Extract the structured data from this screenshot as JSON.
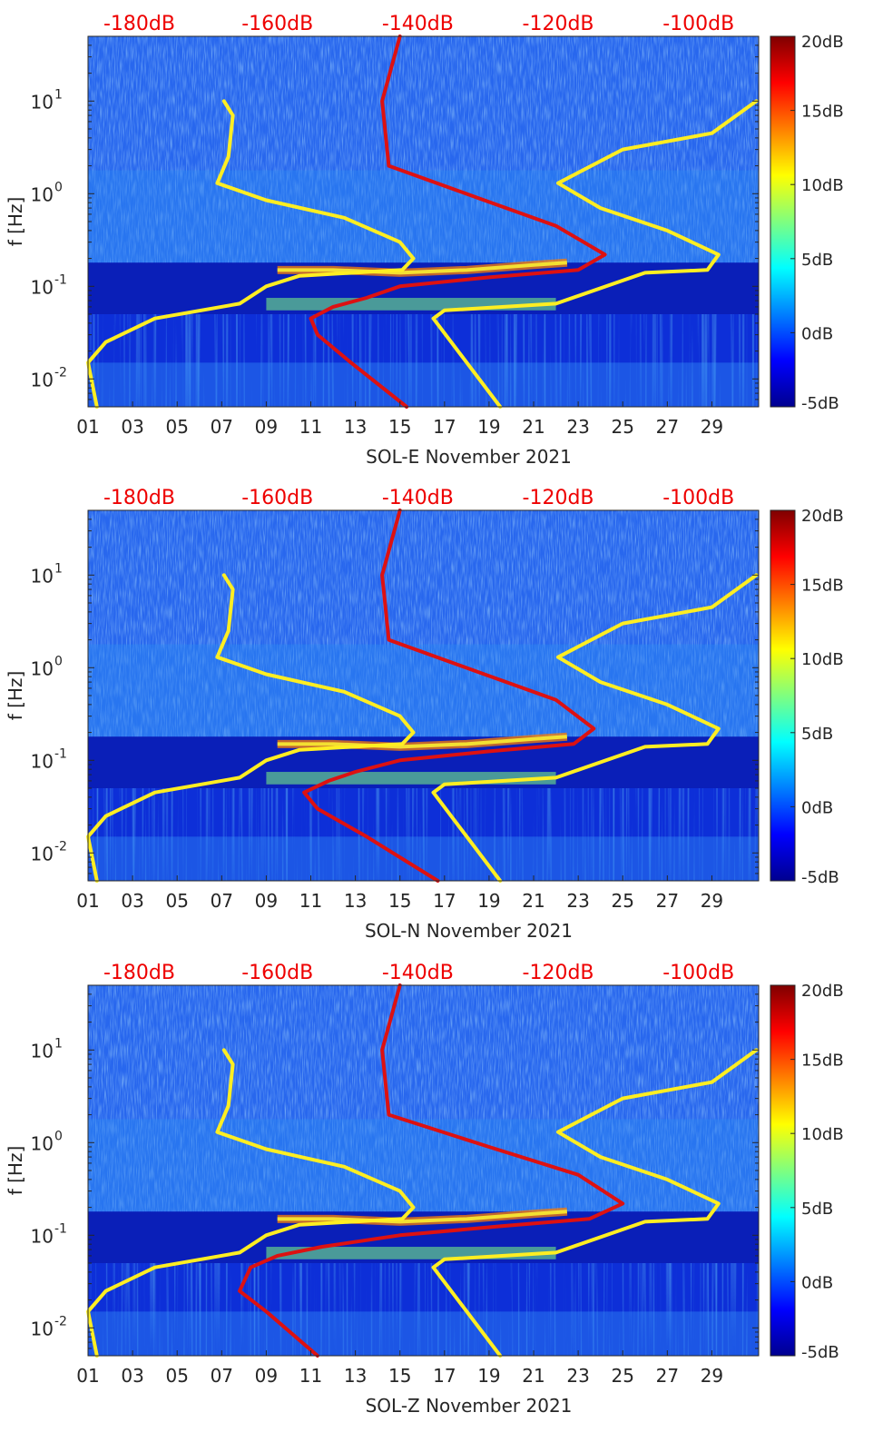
{
  "colormap": {
    "stops": [
      "#00008f",
      "#0000ff",
      "#007fff",
      "#00ffff",
      "#7fff7f",
      "#ffff00",
      "#ff7f00",
      "#ff0000",
      "#7f0000"
    ],
    "yellow_line": "#ffee22",
    "red_line": "#dd1111",
    "db_label_color": "#ee0000"
  },
  "chart_data": [
    {
      "type": "heatmap",
      "title": "",
      "xlabel": "SOL-E November 2021",
      "ylabel": "f [Hz]",
      "x_ticks": [
        "01",
        "03",
        "05",
        "07",
        "09",
        "11",
        "13",
        "15",
        "17",
        "19",
        "21",
        "23",
        "25",
        "27",
        "29"
      ],
      "y_ticks": [
        "10",
        "10",
        "10",
        "10"
      ],
      "y_tick_exponents": [
        "-2",
        "-1",
        "0",
        "1"
      ],
      "y_tick_values": [
        0.01,
        0.1,
        1,
        10
      ],
      "ylim": [
        0.005,
        50
      ],
      "xlim": [
        1,
        31.1
      ],
      "top_labels": [
        "-180dB",
        "-160dB",
        "-140dB",
        "-120dB",
        "-100dB"
      ],
      "top_label_days": [
        3.3,
        9.5,
        15.8,
        22.1,
        28.4
      ],
      "colorbar": {
        "labels": [
          "20dB",
          "15dB",
          "10dB",
          "5dB",
          "0dB",
          "-5dB"
        ],
        "range": [
          -5,
          20
        ]
      },
      "series": [
        {
          "name": "yellow-low",
          "x": [
            7.1,
            7.5,
            7.3,
            6.8,
            9.0,
            12.5,
            15.0,
            15.6,
            15.1,
            10.5,
            9.0,
            7.8,
            4.0,
            1.8,
            1.0,
            1.4
          ],
          "y": [
            10,
            7,
            2.5,
            1.3,
            0.85,
            0.55,
            0.3,
            0.2,
            0.15,
            0.13,
            0.1,
            0.065,
            0.045,
            0.025,
            0.015,
            0.005
          ]
        },
        {
          "name": "yellow-high",
          "x": [
            31.0,
            29.0,
            25.0,
            22.1,
            24.0,
            27.0,
            29.3,
            28.8,
            26.0,
            22.0,
            17.0,
            16.5,
            19.5
          ],
          "y": [
            10,
            4.5,
            3.0,
            1.3,
            0.7,
            0.4,
            0.22,
            0.15,
            0.14,
            0.065,
            0.055,
            0.045,
            0.005
          ]
        },
        {
          "name": "red-nlnm",
          "x": [
            15.0,
            14.2,
            14.5,
            18.5,
            22.0,
            24.2,
            23.0,
            19.0,
            15.0,
            13.5,
            12.0,
            11.0,
            11.3,
            12.8,
            15.3
          ],
          "y": [
            50,
            10,
            2.0,
            0.9,
            0.45,
            0.22,
            0.15,
            0.125,
            0.1,
            0.075,
            0.06,
            0.045,
            0.03,
            0.015,
            0.005
          ]
        }
      ]
    },
    {
      "type": "heatmap",
      "title": "",
      "xlabel": "SOL-N November 2021",
      "ylabel": "f [Hz]",
      "x_ticks": [
        "01",
        "03",
        "05",
        "07",
        "09",
        "11",
        "13",
        "15",
        "17",
        "19",
        "21",
        "23",
        "25",
        "27",
        "29"
      ],
      "y_ticks": [
        "10",
        "10",
        "10",
        "10"
      ],
      "y_tick_exponents": [
        "-2",
        "-1",
        "0",
        "1"
      ],
      "y_tick_values": [
        0.01,
        0.1,
        1,
        10
      ],
      "ylim": [
        0.005,
        50
      ],
      "xlim": [
        1,
        31.1
      ],
      "top_labels": [
        "-180dB",
        "-160dB",
        "-140dB",
        "-120dB",
        "-100dB"
      ],
      "top_label_days": [
        3.3,
        9.5,
        15.8,
        22.1,
        28.4
      ],
      "colorbar": {
        "labels": [
          "20dB",
          "15dB",
          "10dB",
          "5dB",
          "0dB",
          "-5dB"
        ],
        "range": [
          -5,
          20
        ]
      },
      "series": [
        {
          "name": "yellow-low",
          "x": [
            7.1,
            7.5,
            7.3,
            6.8,
            9.0,
            12.5,
            15.0,
            15.6,
            15.1,
            10.5,
            9.0,
            7.8,
            4.0,
            1.8,
            1.0,
            1.4
          ],
          "y": [
            10,
            7,
            2.5,
            1.3,
            0.85,
            0.55,
            0.3,
            0.2,
            0.15,
            0.13,
            0.1,
            0.065,
            0.045,
            0.025,
            0.015,
            0.005
          ]
        },
        {
          "name": "yellow-high",
          "x": [
            31.0,
            29.0,
            25.0,
            22.1,
            24.0,
            27.0,
            29.3,
            28.8,
            26.0,
            22.0,
            17.0,
            16.5,
            19.5
          ],
          "y": [
            10,
            4.5,
            3.0,
            1.3,
            0.7,
            0.4,
            0.22,
            0.15,
            0.14,
            0.065,
            0.055,
            0.045,
            0.005
          ]
        },
        {
          "name": "red-nlnm",
          "x": [
            15.0,
            14.2,
            14.5,
            18.5,
            22.0,
            23.7,
            22.8,
            19.0,
            15.0,
            13.0,
            11.8,
            10.7,
            11.3,
            13.5,
            16.7
          ],
          "y": [
            50,
            10,
            2.0,
            0.9,
            0.45,
            0.22,
            0.15,
            0.125,
            0.1,
            0.075,
            0.06,
            0.045,
            0.03,
            0.015,
            0.005
          ]
        }
      ]
    },
    {
      "type": "heatmap",
      "title": "",
      "xlabel": "SOL-Z November 2021",
      "ylabel": "f [Hz]",
      "x_ticks": [
        "01",
        "03",
        "05",
        "07",
        "09",
        "11",
        "13",
        "15",
        "17",
        "19",
        "21",
        "23",
        "25",
        "27",
        "29"
      ],
      "y_ticks": [
        "10",
        "10",
        "10",
        "10"
      ],
      "y_tick_exponents": [
        "-2",
        "-1",
        "0",
        "1"
      ],
      "y_tick_values": [
        0.01,
        0.1,
        1,
        10
      ],
      "ylim": [
        0.005,
        50
      ],
      "xlim": [
        1,
        31.1
      ],
      "top_labels": [
        "-180dB",
        "-160dB",
        "-140dB",
        "-120dB",
        "-100dB"
      ],
      "top_label_days": [
        3.3,
        9.5,
        15.8,
        22.1,
        28.4
      ],
      "colorbar": {
        "labels": [
          "20dB",
          "15dB",
          "10dB",
          "5dB",
          "0dB",
          "-5dB"
        ],
        "range": [
          -5,
          20
        ]
      },
      "series": [
        {
          "name": "yellow-low",
          "x": [
            7.1,
            7.5,
            7.3,
            6.8,
            9.0,
            12.5,
            15.0,
            15.6,
            15.1,
            10.5,
            9.0,
            7.8,
            4.0,
            1.8,
            1.0,
            1.4
          ],
          "y": [
            10,
            7,
            2.5,
            1.3,
            0.85,
            0.55,
            0.3,
            0.2,
            0.15,
            0.13,
            0.1,
            0.065,
            0.045,
            0.025,
            0.015,
            0.005
          ]
        },
        {
          "name": "yellow-high",
          "x": [
            31.0,
            29.0,
            25.0,
            22.1,
            24.0,
            27.0,
            29.3,
            28.8,
            26.0,
            22.0,
            17.0,
            16.5,
            19.5
          ],
          "y": [
            10,
            4.5,
            3.0,
            1.3,
            0.7,
            0.4,
            0.22,
            0.15,
            0.14,
            0.065,
            0.055,
            0.045,
            0.005
          ]
        },
        {
          "name": "red-nlnm",
          "x": [
            15.0,
            14.2,
            14.5,
            19.0,
            23.0,
            25.0,
            23.5,
            19.5,
            15.0,
            11.5,
            9.5,
            8.3,
            7.8,
            9.0,
            11.3
          ],
          "y": [
            50,
            10,
            2.0,
            0.9,
            0.45,
            0.22,
            0.15,
            0.125,
            0.1,
            0.075,
            0.06,
            0.045,
            0.025,
            0.015,
            0.005
          ]
        }
      ]
    }
  ]
}
